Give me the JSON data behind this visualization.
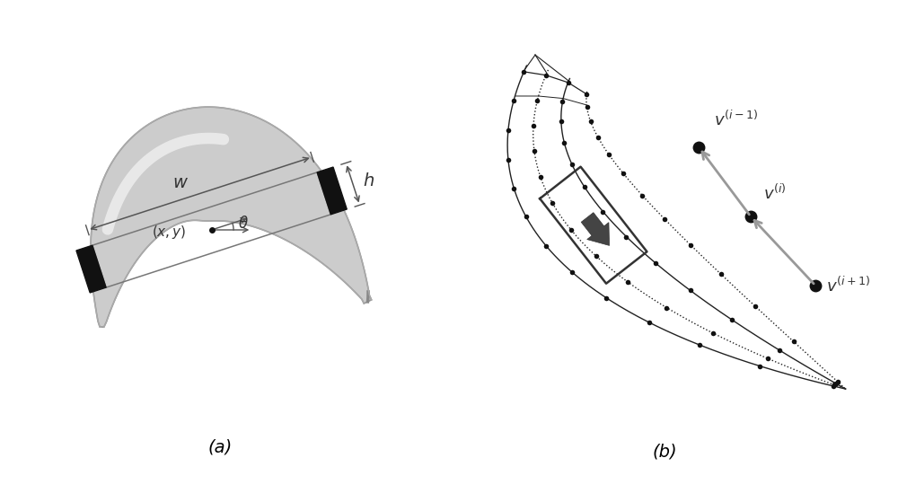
{
  "fig_width": 10.0,
  "fig_height": 5.59,
  "bg_color": "#ffffff",
  "label_a": "(a)",
  "label_b": "(b)",
  "label_fontsize": 14,
  "curve_color": "#222222",
  "dot_color": "#111111",
  "arrow_color": "#888888",
  "rect_color": "#333333",
  "dark_arrow_color": "#444444"
}
